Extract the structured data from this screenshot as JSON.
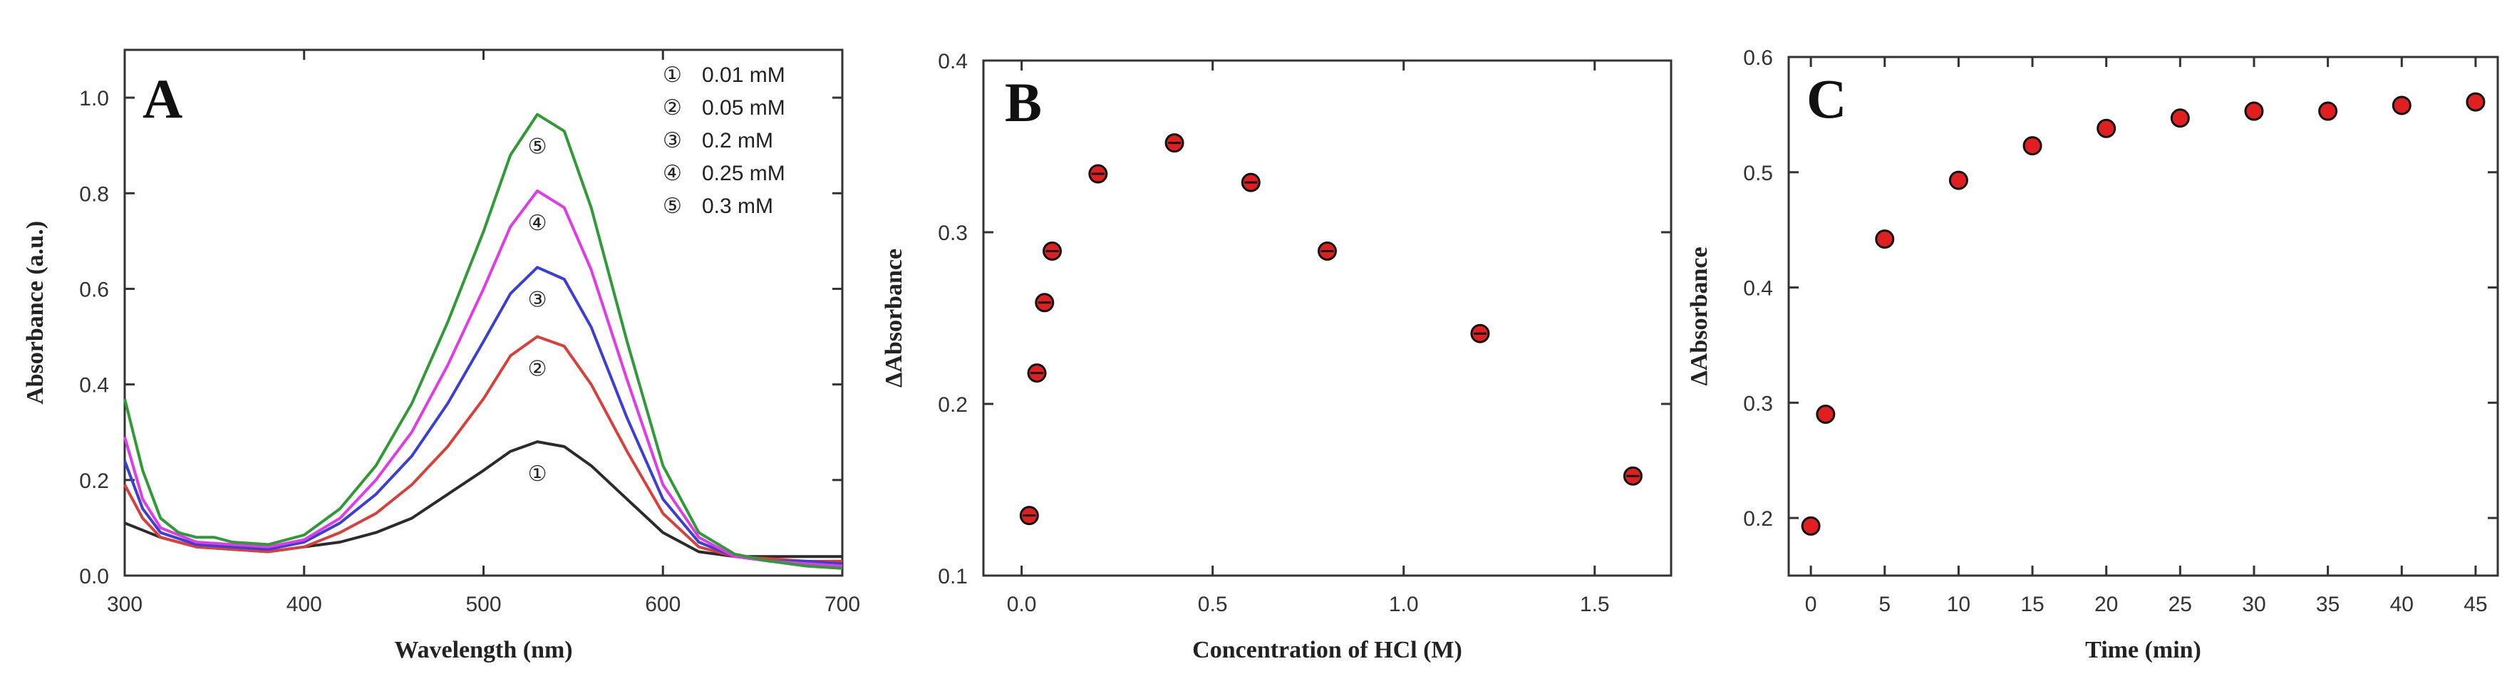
{
  "figure": {
    "background": "#ffffff",
    "axis_color": "#333333"
  },
  "chart_data": [
    {
      "panel": "A",
      "type": "line",
      "xlabel": "Wavelength (nm)",
      "ylabel": "Absorbance (a.u.)",
      "xlim": [
        300,
        700
      ],
      "ylim": [
        0.0,
        1.1
      ],
      "xticks": [
        300,
        400,
        500,
        600,
        700
      ],
      "yticks": [
        0.0,
        0.2,
        0.4,
        0.6,
        0.8,
        1.0
      ],
      "legend_position": "top-right",
      "legend": [
        {
          "symbol": "①",
          "text": "0.01 mM"
        },
        {
          "symbol": "②",
          "text": "0.05 mM"
        },
        {
          "symbol": "③",
          "text": "0.2 mM"
        },
        {
          "symbol": "④",
          "text": "0.25 mM"
        },
        {
          "symbol": "⑤",
          "text": "0.3 mM"
        }
      ],
      "series": [
        {
          "marker": "①",
          "color": "#2b2b2b",
          "points": [
            [
              300,
              0.11
            ],
            [
              320,
              0.08
            ],
            [
              340,
              0.06
            ],
            [
              360,
              0.055
            ],
            [
              380,
              0.05
            ],
            [
              400,
              0.06
            ],
            [
              420,
              0.07
            ],
            [
              440,
              0.09
            ],
            [
              460,
              0.12
            ],
            [
              480,
              0.17
            ],
            [
              500,
              0.22
            ],
            [
              515,
              0.26
            ],
            [
              530,
              0.28
            ],
            [
              545,
              0.27
            ],
            [
              560,
              0.23
            ],
            [
              580,
              0.16
            ],
            [
              600,
              0.09
            ],
            [
              620,
              0.05
            ],
            [
              640,
              0.04
            ],
            [
              660,
              0.04
            ],
            [
              680,
              0.04
            ],
            [
              700,
              0.04
            ]
          ]
        },
        {
          "marker": "②",
          "color": "#d9403a",
          "points": [
            [
              300,
              0.19
            ],
            [
              310,
              0.12
            ],
            [
              320,
              0.08
            ],
            [
              340,
              0.06
            ],
            [
              360,
              0.055
            ],
            [
              380,
              0.05
            ],
            [
              400,
              0.06
            ],
            [
              420,
              0.09
            ],
            [
              440,
              0.13
            ],
            [
              460,
              0.19
            ],
            [
              480,
              0.27
            ],
            [
              500,
              0.37
            ],
            [
              515,
              0.46
            ],
            [
              530,
              0.5
            ],
            [
              545,
              0.48
            ],
            [
              560,
              0.4
            ],
            [
              580,
              0.26
            ],
            [
              600,
              0.13
            ],
            [
              620,
              0.06
            ],
            [
              640,
              0.04
            ],
            [
              660,
              0.035
            ],
            [
              680,
              0.03
            ],
            [
              700,
              0.03
            ]
          ]
        },
        {
          "marker": "③",
          "color": "#3b3fd6",
          "points": [
            [
              300,
              0.24
            ],
            [
              310,
              0.14
            ],
            [
              320,
              0.09
            ],
            [
              340,
              0.065
            ],
            [
              360,
              0.06
            ],
            [
              380,
              0.055
            ],
            [
              400,
              0.07
            ],
            [
              420,
              0.11
            ],
            [
              440,
              0.17
            ],
            [
              460,
              0.25
            ],
            [
              480,
              0.36
            ],
            [
              500,
              0.49
            ],
            [
              515,
              0.59
            ],
            [
              530,
              0.645
            ],
            [
              545,
              0.62
            ],
            [
              560,
              0.52
            ],
            [
              580,
              0.33
            ],
            [
              600,
              0.16
            ],
            [
              620,
              0.07
            ],
            [
              640,
              0.04
            ],
            [
              660,
              0.03
            ],
            [
              680,
              0.03
            ],
            [
              700,
              0.025
            ]
          ]
        },
        {
          "marker": "④",
          "color": "#e03ce6",
          "points": [
            [
              300,
              0.29
            ],
            [
              310,
              0.16
            ],
            [
              320,
              0.1
            ],
            [
              340,
              0.07
            ],
            [
              360,
              0.065
            ],
            [
              380,
              0.06
            ],
            [
              400,
              0.075
            ],
            [
              420,
              0.12
            ],
            [
              440,
              0.2
            ],
            [
              460,
              0.3
            ],
            [
              480,
              0.44
            ],
            [
              500,
              0.6
            ],
            [
              515,
              0.73
            ],
            [
              530,
              0.805
            ],
            [
              545,
              0.77
            ],
            [
              560,
              0.64
            ],
            [
              580,
              0.41
            ],
            [
              600,
              0.19
            ],
            [
              620,
              0.08
            ],
            [
              640,
              0.04
            ],
            [
              660,
              0.03
            ],
            [
              680,
              0.025
            ],
            [
              700,
              0.02
            ]
          ]
        },
        {
          "marker": "⑤",
          "color": "#2f9a36",
          "points": [
            [
              300,
              0.37
            ],
            [
              310,
              0.22
            ],
            [
              320,
              0.12
            ],
            [
              330,
              0.09
            ],
            [
              340,
              0.08
            ],
            [
              350,
              0.08
            ],
            [
              360,
              0.07
            ],
            [
              380,
              0.065
            ],
            [
              400,
              0.085
            ],
            [
              420,
              0.14
            ],
            [
              440,
              0.23
            ],
            [
              460,
              0.36
            ],
            [
              480,
              0.53
            ],
            [
              500,
              0.72
            ],
            [
              515,
              0.88
            ],
            [
              530,
              0.965
            ],
            [
              545,
              0.93
            ],
            [
              560,
              0.77
            ],
            [
              580,
              0.49
            ],
            [
              600,
              0.23
            ],
            [
              620,
              0.09
            ],
            [
              640,
              0.045
            ],
            [
              660,
              0.03
            ],
            [
              680,
              0.02
            ],
            [
              700,
              0.015
            ]
          ]
        }
      ]
    },
    {
      "panel": "B",
      "type": "scatter",
      "xlabel": "Concentration of HCl (M)",
      "ylabel": "ΔAbsorbance",
      "xlim": [
        -0.1,
        1.7
      ],
      "ylim": [
        0.1,
        0.4
      ],
      "xticks": [
        0.0,
        0.5,
        1.0,
        1.5
      ],
      "yticks": [
        0.1,
        0.2,
        0.3,
        0.4
      ],
      "x": [
        0.02,
        0.04,
        0.06,
        0.08,
        0.2,
        0.4,
        0.6,
        0.8,
        1.2,
        1.6
      ],
      "y": [
        0.135,
        0.218,
        0.259,
        0.289,
        0.334,
        0.352,
        0.329,
        0.289,
        0.241,
        0.158
      ],
      "marker_color": "#e02020"
    },
    {
      "panel": "C",
      "type": "scatter",
      "xlabel": "Time (min)",
      "ylabel": "ΔAbsorbance",
      "xlim": [
        -1.5,
        46.5
      ],
      "ylim": [
        0.15,
        0.6
      ],
      "xticks": [
        0,
        5,
        10,
        15,
        20,
        25,
        30,
        35,
        40,
        45
      ],
      "yticks": [
        0.2,
        0.3,
        0.4,
        0.5,
        0.6
      ],
      "x": [
        0,
        1,
        5,
        10,
        15,
        20,
        25,
        30,
        35,
        40,
        45
      ],
      "y": [
        0.193,
        0.29,
        0.442,
        0.493,
        0.523,
        0.538,
        0.547,
        0.553,
        0.553,
        0.558,
        0.561
      ],
      "marker_color": "#e02020"
    }
  ]
}
